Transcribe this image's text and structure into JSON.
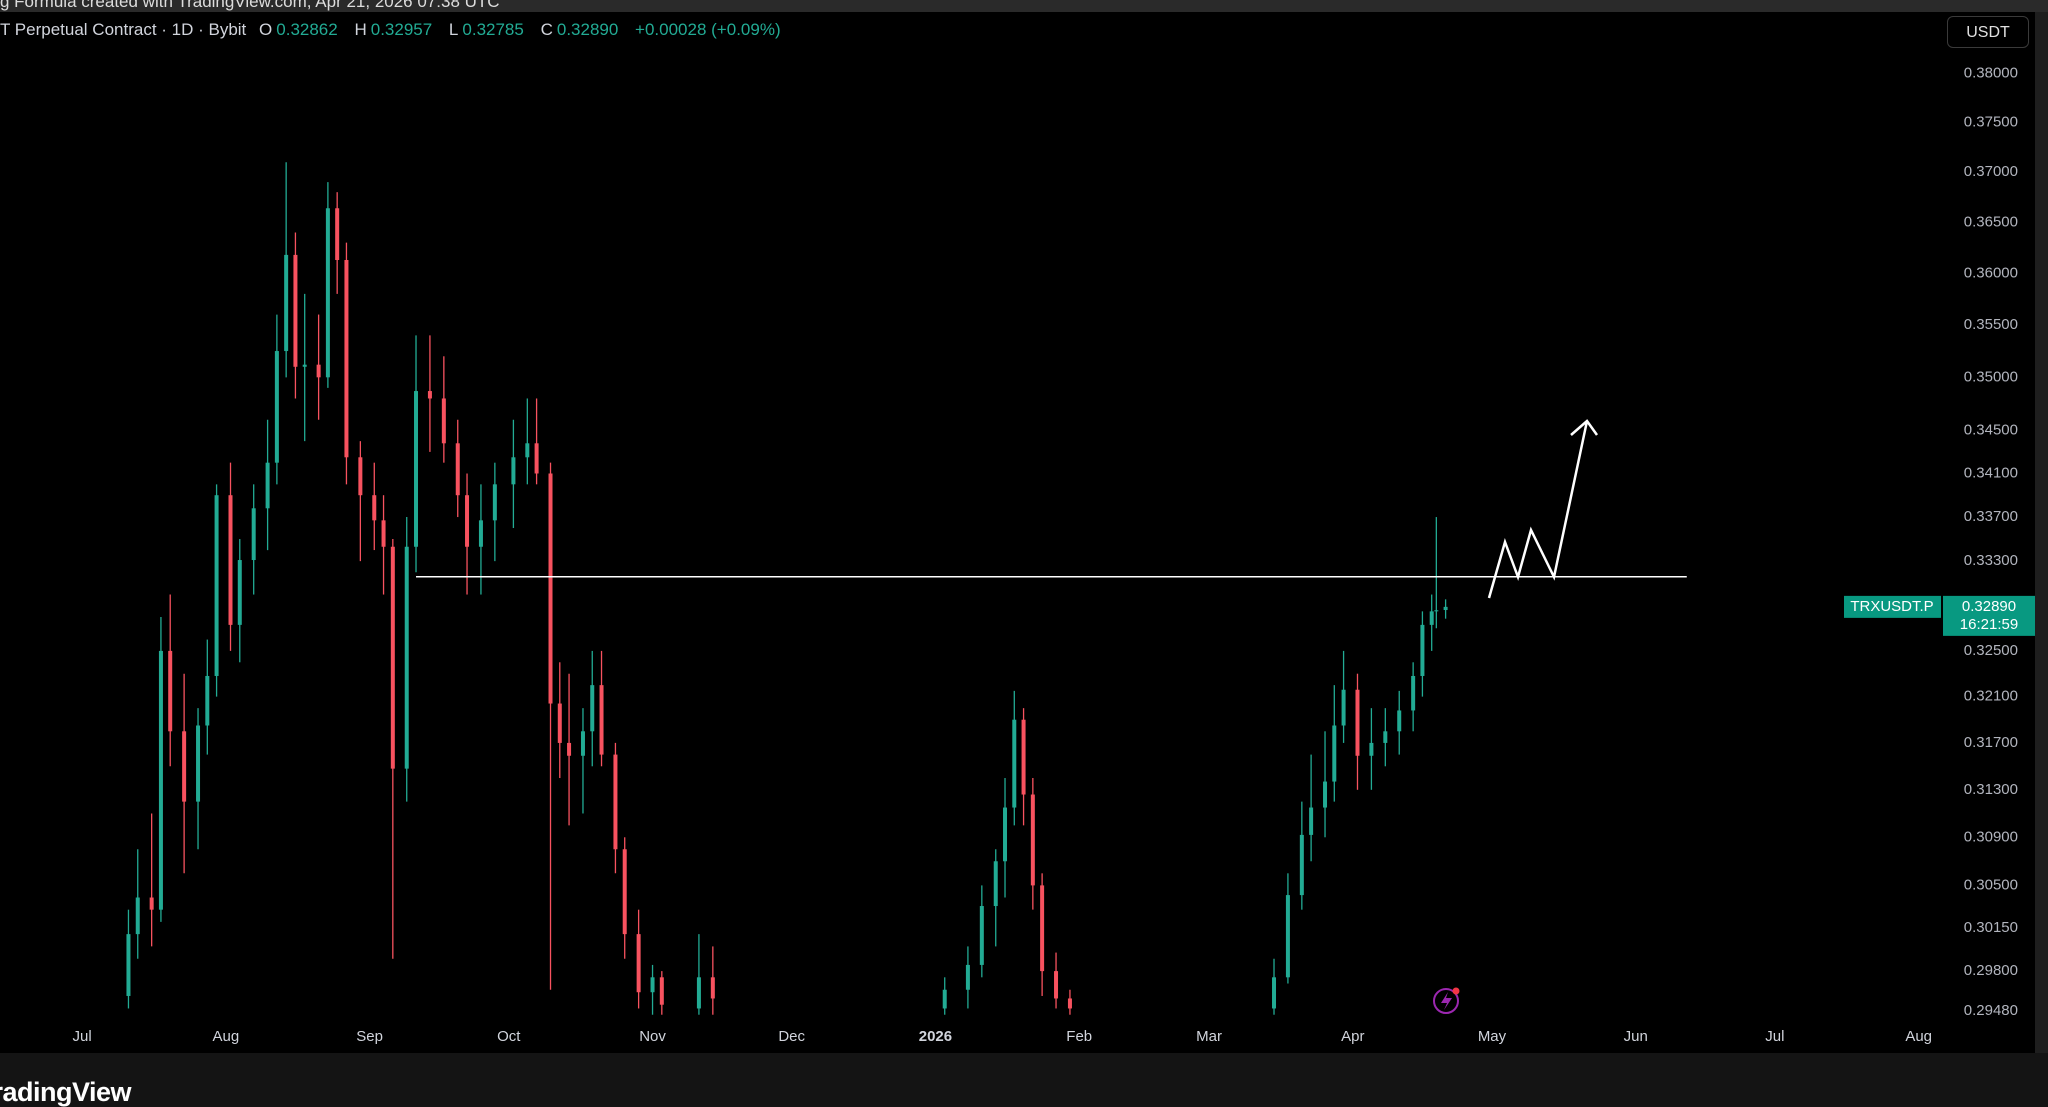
{
  "header": {
    "watermark": "g Formula created with TradingView.com, Apr 21, 2026 07:38 UTC",
    "symbol": "T Perpetual Contract · 1D · Bybit",
    "ohlc": [
      {
        "key": "O",
        "value": "0.32862"
      },
      {
        "key": "H",
        "value": "0.32957"
      },
      {
        "key": "L",
        "value": "0.32785"
      },
      {
        "key": "C",
        "value": "0.32890"
      }
    ],
    "change": "+0.00028 (+0.09%)",
    "currency": "USDT",
    "brand": "TradingView"
  },
  "chart_data": {
    "type": "candlestick",
    "x": [
      10,
      12,
      15,
      17,
      19,
      22,
      25,
      27,
      29,
      32,
      34,
      37,
      40,
      42,
      44,
      46,
      48,
      51,
      53,
      55,
      57,
      60,
      63,
      65,
      67,
      70,
      72,
      75,
      78,
      81,
      83,
      86,
      89,
      93,
      96,
      98,
      101,
      103,
      105,
      108,
      110,
      112,
      115,
      117,
      120,
      123,
      125,
      133,
      136,
      186,
      191,
      194,
      197,
      199,
      201,
      203,
      205,
      207,
      210,
      213,
      257,
      260,
      263,
      265,
      268,
      270,
      272,
      275,
      278,
      281,
      284,
      287,
      289,
      291,
      292,
      294
    ],
    "open": [
      0.296,
      0.301,
      0.304,
      0.303,
      0.325,
      0.318,
      0.312,
      0.3185,
      0.3228,
      0.339,
      0.3273,
      0.3331,
      0.3378,
      0.342,
      0.3525,
      0.3618,
      0.351,
      0.3512,
      0.35,
      0.3664,
      0.3613,
      0.3425,
      0.339,
      0.3367,
      0.3343,
      0.3148,
      0.3343,
      0.3487,
      0.348,
      0.3438,
      0.339,
      0.3343,
      0.3367,
      0.34,
      0.3425,
      0.3438,
      0.341,
      0.3204,
      0.317,
      0.3159,
      0.318,
      0.322,
      0.316,
      0.308,
      0.301,
      0.2963,
      0.2975,
      0.295,
      0.2975,
      0.295,
      0.2965,
      0.2985,
      0.3033,
      0.307,
      0.3115,
      0.319,
      0.3126,
      0.305,
      0.298,
      0.2958,
      0.295,
      0.2975,
      0.3042,
      0.3092,
      0.3115,
      0.3137,
      0.3185,
      0.3216,
      0.3159,
      0.317,
      0.318,
      0.3198,
      0.3228,
      0.3273,
      0.3285,
      0.32862
    ],
    "high": [
      0.303,
      0.308,
      0.311,
      0.328,
      0.33,
      0.323,
      0.32,
      0.326,
      0.34,
      0.342,
      0.335,
      0.34,
      0.346,
      0.356,
      0.371,
      0.364,
      0.358,
      0.356,
      0.369,
      0.368,
      0.363,
      0.344,
      0.342,
      0.339,
      0.335,
      0.337,
      0.354,
      0.354,
      0.352,
      0.346,
      0.341,
      0.34,
      0.342,
      0.346,
      0.348,
      0.348,
      0.342,
      0.324,
      0.323,
      0.32,
      0.325,
      0.325,
      0.317,
      0.309,
      0.303,
      0.2985,
      0.298,
      0.301,
      0.3,
      0.2975,
      0.3,
      0.305,
      0.308,
      0.314,
      0.3215,
      0.32,
      0.314,
      0.306,
      0.2995,
      0.2965,
      0.299,
      0.306,
      0.312,
      0.316,
      0.318,
      0.322,
      0.325,
      0.323,
      0.32,
      0.32,
      0.3215,
      0.324,
      0.3285,
      0.33,
      0.337,
      0.32957
    ],
    "low": [
      0.295,
      0.299,
      0.3,
      0.302,
      0.315,
      0.306,
      0.308,
      0.316,
      0.321,
      0.325,
      0.324,
      0.33,
      0.334,
      0.34,
      0.35,
      0.348,
      0.344,
      0.346,
      0.349,
      0.358,
      0.34,
      0.333,
      0.334,
      0.33,
      0.299,
      0.312,
      0.332,
      0.343,
      0.342,
      0.337,
      0.33,
      0.33,
      0.333,
      0.336,
      0.34,
      0.34,
      0.2965,
      0.314,
      0.31,
      0.311,
      0.315,
      0.315,
      0.306,
      0.299,
      0.295,
      0.2945,
      0.2945,
      0.2945,
      0.2945,
      0.2945,
      0.295,
      0.2975,
      0.3,
      0.304,
      0.31,
      0.31,
      0.303,
      0.296,
      0.295,
      0.2945,
      0.2945,
      0.297,
      0.303,
      0.307,
      0.309,
      0.312,
      0.317,
      0.313,
      0.313,
      0.315,
      0.316,
      0.318,
      0.321,
      0.325,
      0.327,
      0.32785
    ],
    "close": [
      0.301,
      0.304,
      0.303,
      0.325,
      0.318,
      0.312,
      0.3185,
      0.3228,
      0.339,
      0.3273,
      0.3331,
      0.3378,
      0.342,
      0.3525,
      0.3618,
      0.351,
      0.3512,
      0.35,
      0.3664,
      0.3613,
      0.3425,
      0.339,
      0.3367,
      0.3343,
      0.3148,
      0.3343,
      0.3487,
      0.348,
      0.3438,
      0.339,
      0.3343,
      0.3367,
      0.34,
      0.3425,
      0.3438,
      0.341,
      0.3204,
      0.317,
      0.3159,
      0.318,
      0.322,
      0.316,
      0.308,
      0.301,
      0.2963,
      0.2975,
      0.2953,
      0.2975,
      0.2958,
      0.2965,
      0.2985,
      0.3033,
      0.307,
      0.3115,
      0.319,
      0.3126,
      0.305,
      0.298,
      0.2958,
      0.295,
      0.2975,
      0.3042,
      0.3092,
      0.3115,
      0.3137,
      0.3185,
      0.3216,
      0.3159,
      0.317,
      0.318,
      0.3198,
      0.3228,
      0.3273,
      0.3285,
      0.3286,
      0.3289
    ],
    "up_color": "#22ab94",
    "down_color": "#f7525f",
    "xlim": [
      -17.7,
      400.6
    ],
    "xticks": [
      {
        "value": 0,
        "label": "Jul"
      },
      {
        "value": 31,
        "label": "Aug"
      },
      {
        "value": 62,
        "label": "Sep"
      },
      {
        "value": 92,
        "label": "Oct"
      },
      {
        "value": 123,
        "label": "Nov"
      },
      {
        "value": 153,
        "label": "Dec"
      },
      {
        "value": 184,
        "label": "2026"
      },
      {
        "value": 215,
        "label": "Feb"
      },
      {
        "value": 243,
        "label": "Mar"
      },
      {
        "value": 274,
        "label": "Apr"
      },
      {
        "value": 304,
        "label": "May"
      },
      {
        "value": 335,
        "label": "Jun"
      },
      {
        "value": 365,
        "label": "Jul"
      },
      {
        "value": 396,
        "label": "Aug"
      }
    ],
    "ylim": [
      0.294,
      0.3863
    ],
    "log": true,
    "grid": false,
    "yticks": [
      {
        "value": 0.38,
        "label": "0.38000"
      },
      {
        "value": 0.375,
        "label": "0.37500"
      },
      {
        "value": 0.37,
        "label": "0.37000"
      },
      {
        "value": 0.365,
        "label": "0.36500"
      },
      {
        "value": 0.36,
        "label": "0.36000"
      },
      {
        "value": 0.355,
        "label": "0.35500"
      },
      {
        "value": 0.35,
        "label": "0.35000"
      },
      {
        "value": 0.345,
        "label": "0.34500"
      },
      {
        "value": 0.341,
        "label": "0.34100"
      },
      {
        "value": 0.337,
        "label": "0.33700"
      },
      {
        "value": 0.333,
        "label": "0.33300"
      },
      {
        "value": 0.325,
        "label": "0.32500"
      },
      {
        "value": 0.321,
        "label": "0.32100"
      },
      {
        "value": 0.317,
        "label": "0.31700"
      },
      {
        "value": 0.313,
        "label": "0.31300"
      },
      {
        "value": 0.309,
        "label": "0.30900"
      },
      {
        "value": 0.305,
        "label": "0.30500"
      },
      {
        "value": 0.3015,
        "label": "0.30150"
      },
      {
        "value": 0.298,
        "label": "0.29800"
      },
      {
        "value": 0.2948,
        "label": "0.29480"
      }
    ],
    "level_line": {
      "value": 0.3316,
      "from": 72,
      "to": 346
    },
    "last_price": {
      "symbol": "TRXUSDT.P",
      "value": 0.3289,
      "label": "0.32890",
      "countdown": "16:21:59"
    }
  }
}
